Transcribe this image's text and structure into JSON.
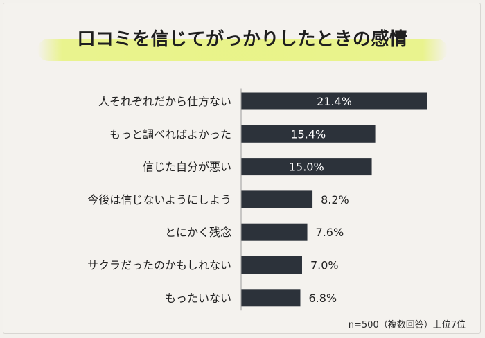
{
  "title": "口コミを信じてがっかりしたときの感情",
  "note": "n=500（複数回答）上位7位",
  "colors": {
    "bar": "#2c323a",
    "label_inside": "#ffffff",
    "label_outside": "#222222",
    "highlight": "#e8f384"
  },
  "chart_data": {
    "type": "bar",
    "orientation": "horizontal",
    "categories": [
      "人それぞれだから仕方ない",
      "もっと調べればよかった",
      "信じた自分が悪い",
      "今後は信じないようにしよう",
      "とにかく残念",
      "サクラだったのかもしれない",
      "もったいない"
    ],
    "values": [
      21.4,
      15.4,
      15.0,
      8.2,
      7.6,
      7.0,
      6.8
    ],
    "data_labels": [
      "21.4%",
      "15.4%",
      "15.0%",
      "8.2%",
      "7.6%",
      "7.0%",
      "6.8%"
    ],
    "unit": "%",
    "title": "口コミを信じてがっかりしたときの感情",
    "grid": false,
    "legend": "none"
  }
}
